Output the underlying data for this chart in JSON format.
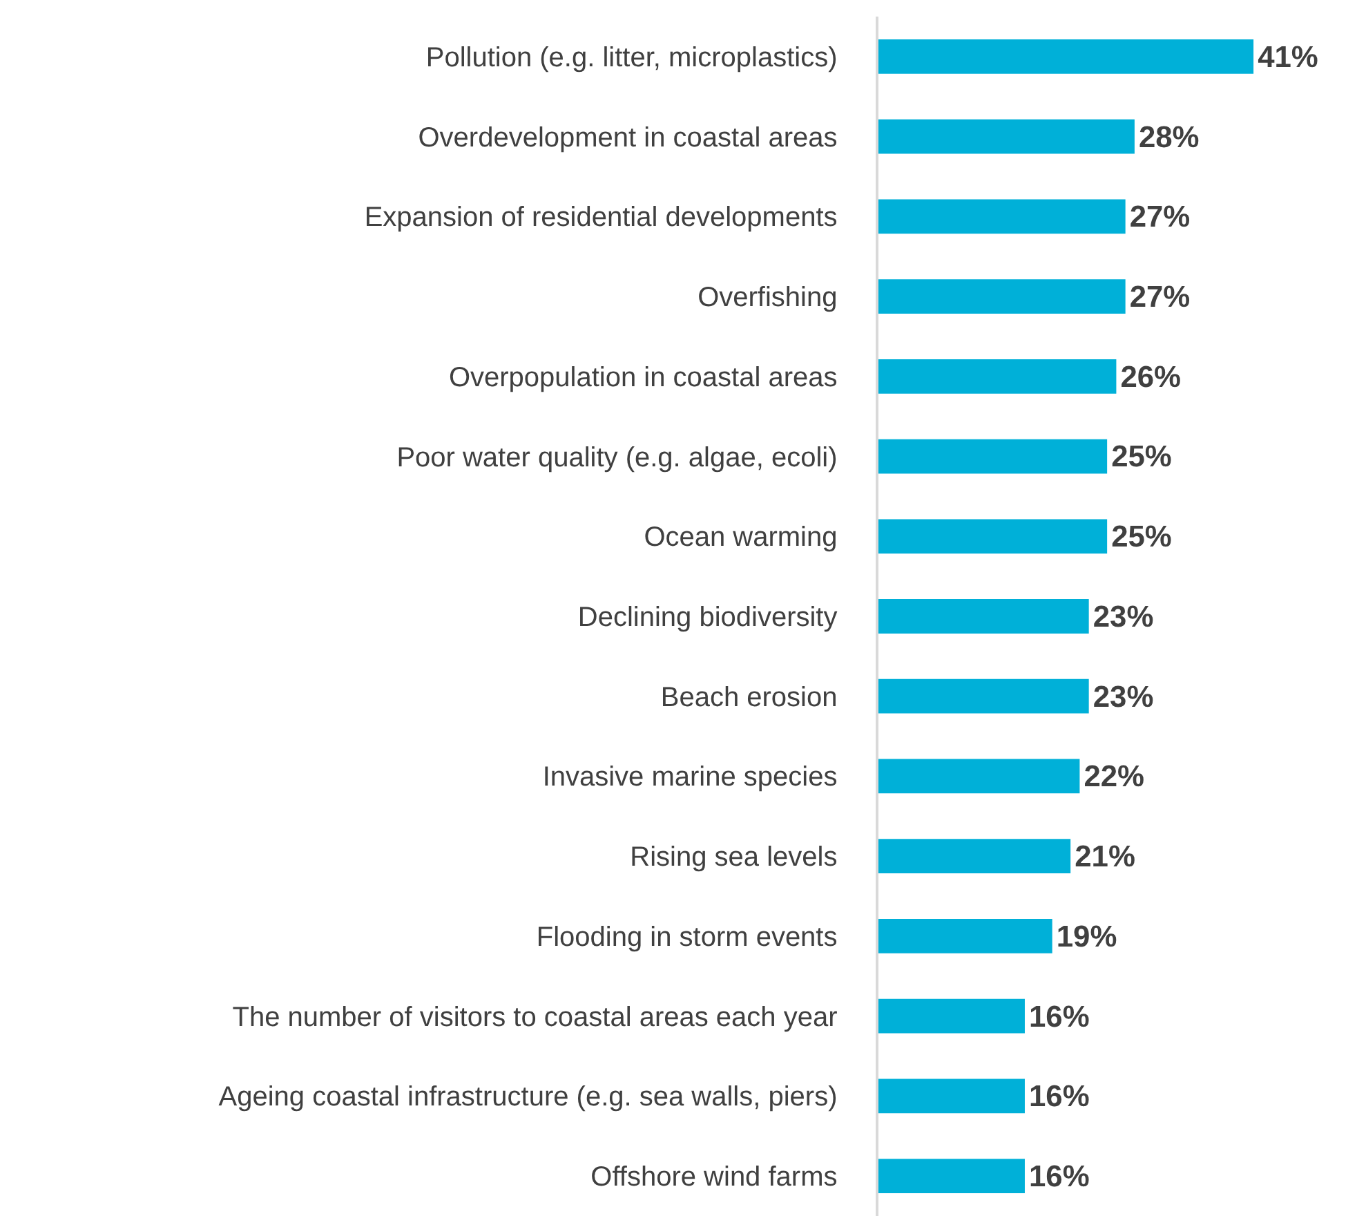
{
  "chart_data": {
    "type": "bar",
    "orientation": "horizontal",
    "categories": [
      "Pollution (e.g. litter, microplastics)",
      "Overdevelopment in coastal areas",
      "Expansion of residential developments",
      "Overfishing",
      "Overpopulation in coastal areas",
      "Poor water quality (e.g. algae, ecoli)",
      "Ocean warming",
      "Declining biodiversity",
      "Beach erosion",
      "Invasive marine species",
      "Rising sea levels",
      "Flooding in storm events",
      "The number of visitors to coastal areas each year",
      "Ageing coastal infrastructure (e.g. sea walls, piers)",
      "Offshore wind farms"
    ],
    "values": [
      41,
      28,
      27,
      27,
      26,
      25,
      25,
      23,
      23,
      22,
      21,
      19,
      16,
      16,
      16
    ],
    "value_labels": [
      "41%",
      "28%",
      "27%",
      "27%",
      "26%",
      "25%",
      "25%",
      "23%",
      "23%",
      "22%",
      "21%",
      "19%",
      "16%",
      "16%",
      "16%"
    ],
    "color": "#00b0d8"
  }
}
